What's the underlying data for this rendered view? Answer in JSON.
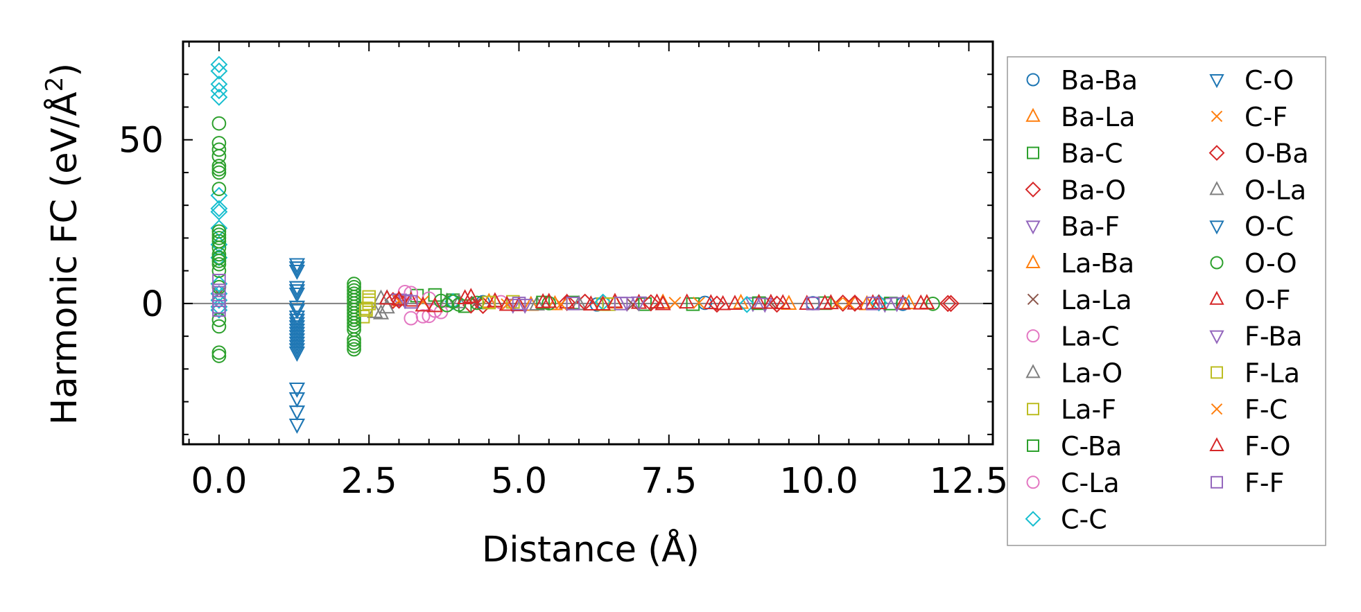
{
  "chart_data": {
    "type": "scatter",
    "title": "",
    "xlabel": "Distance (Å)",
    "ylabel": "Harmonic FC (eV/Å²)",
    "ylabel_main": "Harmonic FC (eV/Å",
    "ylabel_sup": "2",
    "ylabel_close": ")",
    "xlim": [
      -0.6,
      12.9
    ],
    "ylim": [
      -43,
      80
    ],
    "xticks": [
      0.0,
      2.5,
      5.0,
      7.5,
      10.0,
      12.5
    ],
    "xtick_labels": [
      "0.0",
      "2.5",
      "5.0",
      "7.5",
      "10.0",
      "12.5"
    ],
    "yticks": [
      0,
      50
    ],
    "ytick_labels": [
      "0",
      "50"
    ],
    "hline": 0,
    "legend_position": "outside-right",
    "legend_columns": 2,
    "series": [
      {
        "name": "Ba-Ba",
        "color": "#1f77b4",
        "marker": "circle",
        "x": [
          4.4,
          6.3,
          8.1,
          9.9,
          11.4
        ],
        "y": [
          0.4,
          -0.3,
          0.2,
          0.1,
          -0.1
        ]
      },
      {
        "name": "Ba-La",
        "color": "#ff7f0e",
        "marker": "triangle-up",
        "x": [
          4.5,
          5.2,
          6.6,
          8.7,
          10.8,
          11.5
        ],
        "y": [
          0.5,
          -0.4,
          0.3,
          0.2,
          -0.2,
          0.1
        ]
      },
      {
        "name": "Ba-C",
        "color": "#2ca02c",
        "marker": "square",
        "x": [
          3.3,
          4.1,
          5.9,
          7.9,
          10.1
        ],
        "y": [
          2.4,
          -0.8,
          0.3,
          -0.2,
          0.1
        ]
      },
      {
        "name": "Ba-O",
        "color": "#d62728",
        "marker": "diamond",
        "x": [
          2.9,
          4.2,
          6.1,
          8.3,
          10.4,
          12.2
        ],
        "y": [
          0.9,
          -0.5,
          0.4,
          -0.2,
          0.1,
          0.0
        ]
      },
      {
        "name": "Ba-F",
        "color": "#9467bd",
        "marker": "triangle-down",
        "x": [
          3.0,
          4.9,
          6.8,
          8.9,
          11.1
        ],
        "y": [
          1.2,
          -0.4,
          0.2,
          0.1,
          -0.1
        ]
      },
      {
        "name": "La-Ba",
        "color": "#ff7f0e",
        "marker": "triangle-up",
        "x": [
          4.6,
          5.6,
          7.4,
          9.5,
          11.8
        ],
        "y": [
          0.6,
          -0.2,
          0.3,
          -0.1,
          0.1
        ]
      },
      {
        "name": "La-La",
        "color": "#8c564b",
        "marker": "x",
        "x": [
          0.0,
          4.3,
          6.9,
          9.2
        ],
        "y": [
          3.0,
          0.5,
          -0.3,
          0.2
        ]
      },
      {
        "name": "La-C",
        "color": "#e377c2",
        "marker": "circle",
        "x": [
          3.1,
          3.2,
          3.5,
          3.6,
          4.7
        ],
        "y": [
          3.5,
          -4.5,
          -3.8,
          -2.2,
          0.4
        ]
      },
      {
        "name": "La-O",
        "color": "#7f7f7f",
        "marker": "triangle-up",
        "x": [
          2.6,
          2.7,
          2.8,
          3.8,
          5.3
        ],
        "y": [
          -2.6,
          1.5,
          -1.2,
          0.6,
          -0.3
        ]
      },
      {
        "name": "La-F",
        "color": "#bcbd22",
        "marker": "square",
        "x": [
          2.4,
          2.45,
          2.5,
          4.9,
          6.4
        ],
        "y": [
          -4.0,
          -1.5,
          1.0,
          0.5,
          -0.2
        ]
      },
      {
        "name": "C-Ba",
        "color": "#2ca02c",
        "marker": "square",
        "x": [
          3.6,
          3.9,
          5.4,
          7.1,
          9.0,
          11.2
        ],
        "y": [
          2.6,
          1.0,
          0.3,
          -0.2,
          0.1,
          0.0
        ]
      },
      {
        "name": "C-La",
        "color": "#e377c2",
        "marker": "circle",
        "x": [
          3.2,
          3.4,
          3.5,
          3.7
        ],
        "y": [
          3.2,
          -3.9,
          1.5,
          -2.6
        ]
      },
      {
        "name": "C-C",
        "color": "#17becf",
        "marker": "diamond",
        "x": [
          0,
          0,
          0,
          0,
          0,
          0,
          0,
          0,
          0,
          0,
          0,
          0,
          0,
          0,
          0,
          0,
          3.9,
          6.4,
          8.8,
          11.0
        ],
        "y": [
          73,
          71,
          67,
          65,
          63,
          33,
          29,
          28,
          23,
          18,
          14,
          6,
          3,
          1,
          -1,
          -2,
          0.6,
          0.4,
          -0.3,
          0.2
        ]
      },
      {
        "name": "C-O",
        "color": "#1f77b4",
        "marker": "triangle-down",
        "x": [
          1.3,
          1.3,
          1.3,
          1.3,
          1.3,
          1.3,
          1.3,
          1.3,
          1.3,
          1.3,
          1.3,
          1.3,
          1.3,
          1.3,
          1.3,
          1.3,
          1.3,
          1.3,
          1.3,
          1.3,
          1.3,
          1.3,
          1.3,
          1.3
        ],
        "y": [
          12,
          11,
          10,
          5,
          4,
          3,
          -1,
          -2,
          -4,
          -5,
          -6,
          -7,
          -8,
          -9,
          -10,
          -11,
          -12,
          -13,
          -14,
          -15,
          -26,
          -29,
          -33,
          -37
        ]
      },
      {
        "name": "C-F",
        "color": "#ff7f0e",
        "marker": "x",
        "x": [
          3.0,
          4.8,
          7.6,
          10.3
        ],
        "y": [
          0.8,
          -0.3,
          0.2,
          0.0
        ]
      },
      {
        "name": "O-Ba",
        "color": "#d62728",
        "marker": "diamond",
        "x": [
          3.0,
          4.4,
          5.8,
          7.2,
          9.3,
          10.6,
          12.15
        ],
        "y": [
          1.0,
          -0.6,
          0.3,
          0.2,
          -0.2,
          0.1,
          0.0
        ]
      },
      {
        "name": "O-La",
        "color": "#7f7f7f",
        "marker": "triangle-up",
        "x": [
          2.7,
          2.8,
          4.0,
          6.0
        ],
        "y": [
          -3.0,
          1.6,
          0.4,
          -0.2
        ]
      },
      {
        "name": "O-C",
        "color": "#1f77b4",
        "marker": "triangle-down",
        "x": [
          1.3,
          1.3,
          1.3,
          1.3,
          1.3,
          1.3,
          1.3,
          1.3,
          1.3,
          1.3,
          1.3,
          1.3,
          1.3,
          1.3,
          1.3,
          1.3,
          1.3,
          1.3,
          1.3,
          1.3,
          1.3,
          1.3,
          1.3,
          1.3
        ],
        "y": [
          12,
          11,
          10,
          5,
          4,
          3,
          -1,
          -2,
          -4,
          -5,
          -6,
          -7,
          -8,
          -9,
          -10,
          -11,
          -12,
          -13,
          -14,
          -15,
          -26,
          -29,
          -33,
          -37
        ]
      },
      {
        "name": "O-O",
        "color": "#2ca02c",
        "marker": "circle",
        "x": [
          0,
          0,
          0,
          0,
          0,
          0,
          0,
          0,
          0,
          0,
          0,
          0,
          0,
          0,
          0,
          0,
          0,
          0,
          0,
          0,
          0,
          0,
          0,
          2.25,
          2.25,
          2.25,
          2.25,
          2.25,
          2.25,
          2.25,
          2.25,
          2.25,
          2.25,
          2.25,
          2.25,
          2.25,
          2.25,
          2.25,
          2.25,
          2.25,
          2.25,
          2.25,
          3.7,
          3.8,
          3.9,
          4.0,
          4.3,
          5.5,
          11.9
        ],
        "y": [
          55,
          49,
          47,
          45,
          42,
          41,
          40,
          35,
          22,
          21,
          20,
          19,
          17,
          15,
          14,
          13,
          12,
          10,
          5,
          -5,
          -7,
          -15,
          -16,
          6,
          5,
          4,
          3,
          2,
          1,
          0,
          -1,
          -2,
          -3,
          -4,
          -5,
          -6,
          -7,
          -8,
          -11,
          -12,
          -13,
          -14,
          0.8,
          -0.5,
          0.6,
          -0.3,
          0.2,
          0.1,
          -0.1
        ]
      },
      {
        "name": "O-F",
        "color": "#d62728",
        "marker": "triangle-up",
        "x": [
          2.8,
          3.2,
          3.6,
          4.2,
          4.6,
          5.0,
          5.4,
          5.8,
          6.2,
          6.6,
          7.0,
          7.4,
          7.8,
          8.2,
          8.6,
          9.0,
          9.4,
          9.8,
          10.2,
          10.6,
          11.0,
          11.4,
          11.8
        ],
        "y": [
          1.5,
          0.9,
          -0.8,
          2.0,
          0.7,
          -0.5,
          0.4,
          0.3,
          -0.3,
          0.5,
          0.2,
          -0.2,
          0.3,
          0.1,
          -0.1,
          0.2,
          0.1,
          -0.1,
          0.1,
          0.0,
          0.1,
          0.0,
          0.1
        ]
      },
      {
        "name": "F-Ba",
        "color": "#9467bd",
        "marker": "triangle-down",
        "x": [
          3.1,
          5.1,
          7.0,
          9.1,
          11.3
        ],
        "y": [
          1.0,
          -0.4,
          0.3,
          -0.1,
          0.1
        ]
      },
      {
        "name": "F-La",
        "color": "#bcbd22",
        "marker": "square",
        "x": [
          2.45,
          2.5,
          2.5,
          4.5,
          6.5
        ],
        "y": [
          -2.0,
          0.0,
          2.0,
          0.3,
          -0.2
        ]
      },
      {
        "name": "F-C",
        "color": "#ff7f0e",
        "marker": "x",
        "x": [
          3.4,
          5.7,
          8.0,
          10.5
        ],
        "y": [
          0.6,
          -0.2,
          0.2,
          0.0
        ]
      },
      {
        "name": "F-O",
        "color": "#d62728",
        "marker": "triangle-up",
        "x": [
          3.0,
          3.4,
          4.1,
          4.8,
          5.5,
          6.4,
          7.3,
          8.4,
          9.2,
          10.1,
          10.9,
          11.7
        ],
        "y": [
          1.2,
          -0.6,
          1.6,
          -0.4,
          0.5,
          -0.3,
          0.3,
          -0.2,
          0.2,
          0.0,
          0.1,
          0.0
        ]
      },
      {
        "name": "F-F",
        "color": "#9467bd",
        "marker": "square",
        "x": [
          0,
          0,
          0,
          0,
          0,
          3.2,
          5.0,
          5.9,
          6.7,
          9.9,
          10.9
        ],
        "y": [
          7,
          4,
          1,
          -1,
          -2,
          0.5,
          0.0,
          0.0,
          0.0,
          0.0,
          0.0
        ]
      }
    ]
  }
}
